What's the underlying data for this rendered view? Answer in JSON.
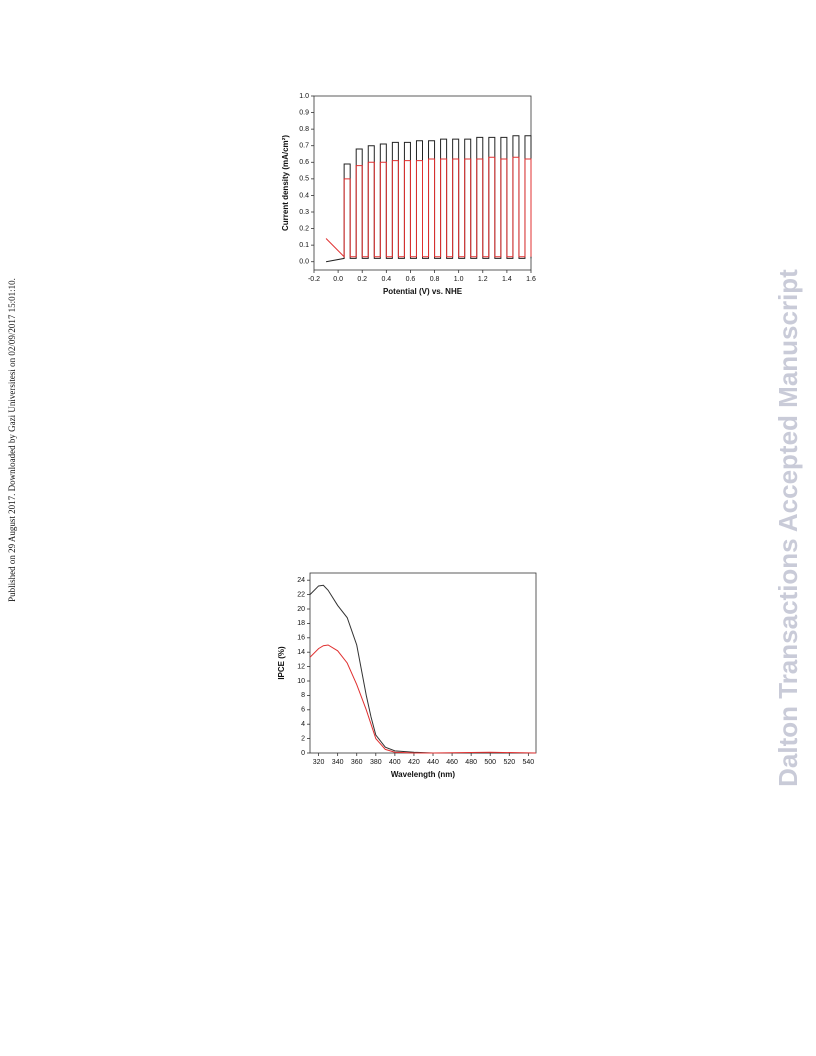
{
  "watermark": "Dalton Transactions Accepted Manuscript",
  "side_note": "Published on 29 August 2017. Downloaded by Gazi Universitesi on 02/09/2017 15:01:10.",
  "chart_data": [
    {
      "type": "line",
      "xlabel": "Potential (V) vs. NHE",
      "ylabel": "Current density (mA/cm²)",
      "x": [
        -0.1,
        0.05,
        0.05,
        0.1,
        0.1,
        0.15,
        0.15,
        0.2,
        0.2,
        0.25,
        0.25,
        0.3,
        0.3,
        0.35,
        0.35,
        0.4,
        0.4,
        0.45,
        0.45,
        0.5,
        0.5,
        0.55,
        0.55,
        0.6,
        0.6,
        0.65,
        0.65,
        0.7,
        0.7,
        0.75,
        0.75,
        0.8,
        0.8,
        0.85,
        0.85,
        0.9,
        0.9,
        0.95,
        0.95,
        1.0,
        1.0,
        1.05,
        1.05,
        1.1,
        1.1,
        1.15,
        1.15,
        1.2,
        1.2,
        1.25,
        1.25,
        1.3,
        1.3,
        1.35,
        1.35,
        1.4,
        1.4,
        1.45,
        1.45,
        1.5,
        1.5,
        1.55,
        1.55,
        1.6,
        1.6
      ],
      "series": [
        {
          "color": "#222222",
          "values": [
            0,
            0.02,
            0.59,
            0.59,
            0.02,
            0.02,
            0.68,
            0.68,
            0.02,
            0.02,
            0.7,
            0.7,
            0.02,
            0.02,
            0.71,
            0.71,
            0.02,
            0.02,
            0.72,
            0.72,
            0.02,
            0.02,
            0.72,
            0.72,
            0.02,
            0.02,
            0.73,
            0.73,
            0.02,
            0.02,
            0.73,
            0.73,
            0.02,
            0.02,
            0.74,
            0.74,
            0.02,
            0.02,
            0.74,
            0.74,
            0.02,
            0.02,
            0.74,
            0.74,
            0.02,
            0.02,
            0.75,
            0.75,
            0.02,
            0.02,
            0.75,
            0.75,
            0.02,
            0.02,
            0.75,
            0.75,
            0.02,
            0.02,
            0.76,
            0.76,
            0.02,
            0.02,
            0.76,
            0.76,
            0.02
          ]
        },
        {
          "color": "#e03030",
          "values": [
            0.14,
            0.03,
            0.5,
            0.5,
            0.03,
            0.03,
            0.58,
            0.58,
            0.03,
            0.03,
            0.6,
            0.6,
            0.03,
            0.03,
            0.6,
            0.6,
            0.03,
            0.03,
            0.61,
            0.61,
            0.03,
            0.03,
            0.61,
            0.61,
            0.03,
            0.03,
            0.61,
            0.61,
            0.03,
            0.03,
            0.62,
            0.62,
            0.03,
            0.03,
            0.62,
            0.62,
            0.03,
            0.03,
            0.62,
            0.62,
            0.03,
            0.03,
            0.62,
            0.62,
            0.03,
            0.03,
            0.62,
            0.62,
            0.03,
            0.03,
            0.63,
            0.63,
            0.03,
            0.03,
            0.62,
            0.62,
            0.03,
            0.03,
            0.63,
            0.63,
            0.03,
            0.03,
            0.62,
            0.62,
            0.03
          ]
        }
      ],
      "xlim": [
        -0.2,
        1.6
      ],
      "xticks": [
        -0.2,
        {
          "value": 0,
          "label": "0.0"
        },
        0.2,
        0.4,
        0.6,
        0.8,
        {
          "value": 1,
          "label": "1.0"
        },
        1.2,
        1.4,
        1.6
      ],
      "ylim": [
        -0.05,
        1.0
      ],
      "yticks": [
        {
          "value": 0,
          "label": "0.0"
        },
        0.1,
        0.2,
        0.3,
        0.4,
        0.5,
        0.6,
        0.7,
        0.8,
        0.9,
        {
          "value": 1,
          "label": "1.0"
        }
      ]
    },
    {
      "type": "line",
      "xlabel": "Wavelength (nm)",
      "ylabel": "IPCE (%)",
      "x": [
        311,
        320,
        325,
        330,
        340,
        350,
        360,
        370,
        375,
        380,
        390,
        400,
        420,
        440,
        500,
        548
      ],
      "series": [
        {
          "color": "#333333",
          "values": [
            22,
            23.2,
            23.3,
            22.6,
            20.5,
            18.8,
            15,
            8,
            5,
            2.5,
            0.8,
            0.3,
            0.1,
            0,
            0,
            0
          ]
        },
        {
          "color": "#e03030",
          "values": [
            13.3,
            14.5,
            14.9,
            15,
            14.2,
            12.5,
            9.5,
            6,
            4,
            2,
            0.5,
            0.1,
            0,
            0,
            0.1,
            0
          ]
        }
      ],
      "xlim": [
        311,
        548
      ],
      "xticks": [
        320,
        340,
        360,
        380,
        400,
        420,
        440,
        460,
        480,
        500,
        520,
        540
      ],
      "ylim": [
        0,
        25
      ],
      "yticks": [
        0,
        2,
        4,
        6,
        8,
        10,
        12,
        14,
        16,
        18,
        20,
        22,
        24
      ]
    }
  ]
}
